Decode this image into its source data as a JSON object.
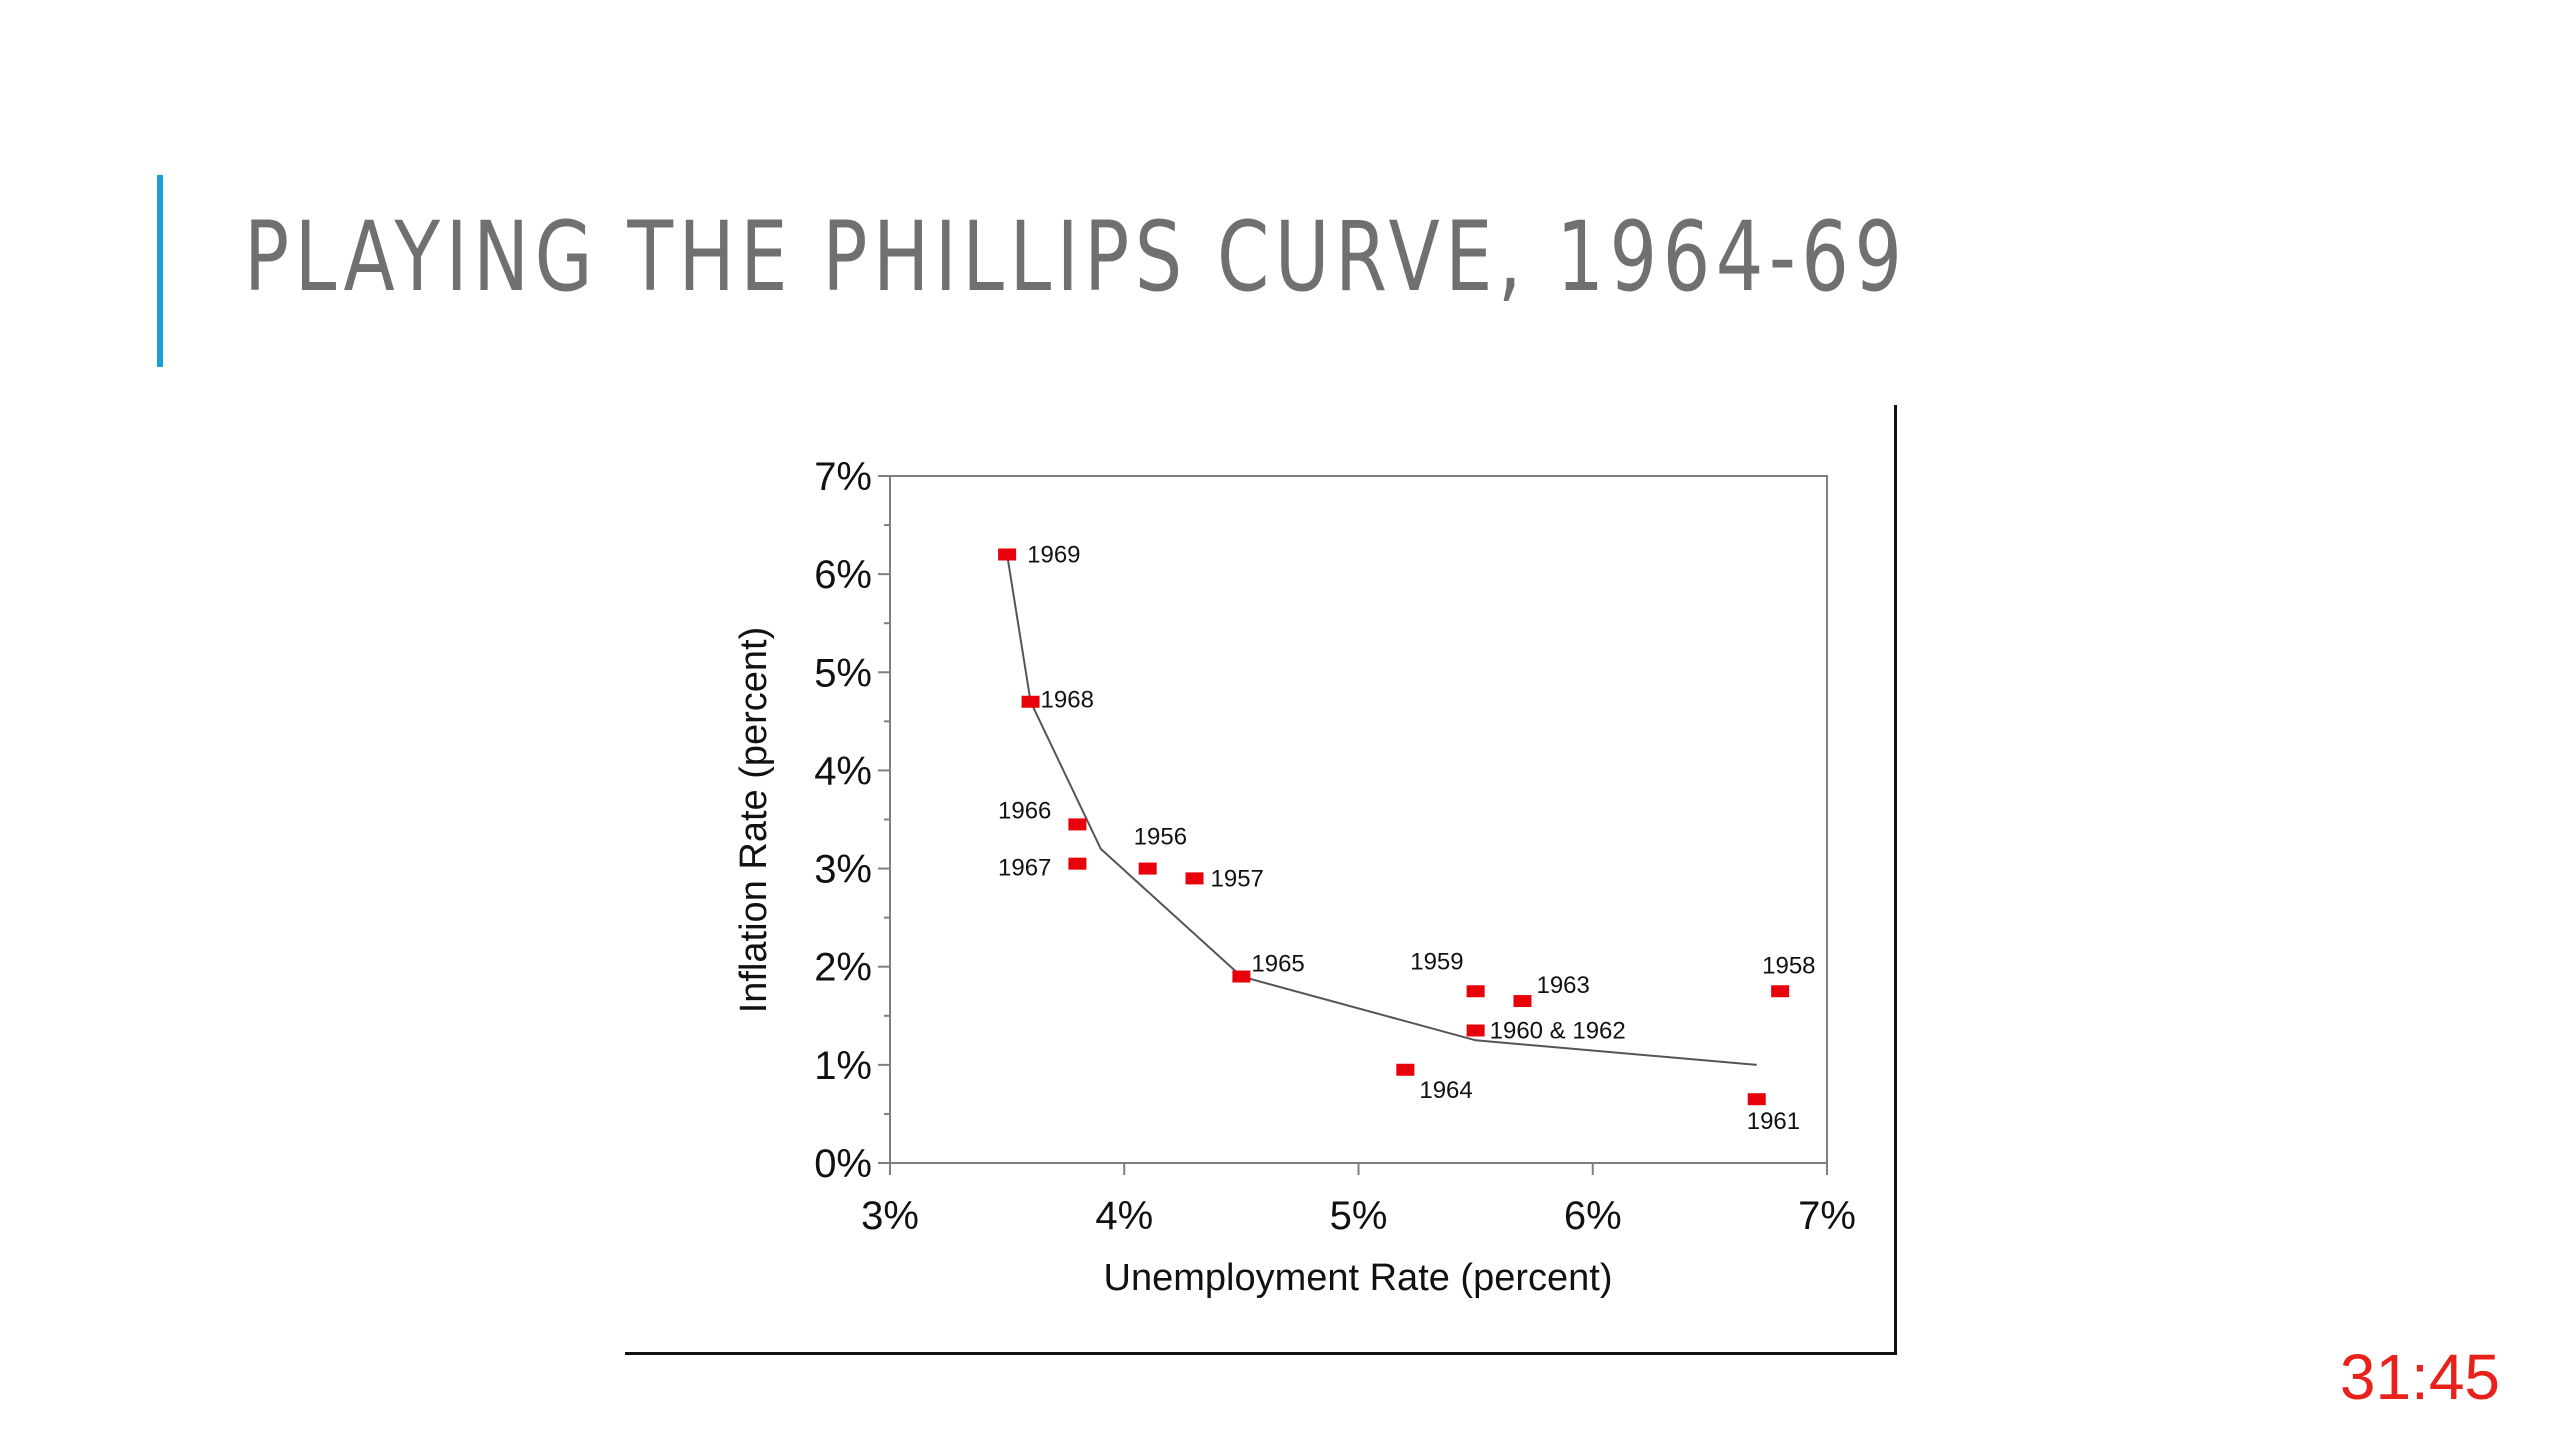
{
  "slide": {
    "title": "PLAYING THE PHILLIPS CURVE, 1964-69",
    "timer": "31:45",
    "accent_color": "#1a9fd4",
    "timer_color": "#e8211b"
  },
  "chart_data": {
    "type": "scatter",
    "title": "",
    "xlabel": "Unemployment Rate (percent)",
    "ylabel": "Inflation Rate (percent)",
    "xlim": [
      3,
      7
    ],
    "ylim": [
      0,
      7
    ],
    "x_ticks": [
      "3%",
      "4%",
      "5%",
      "6%",
      "7%"
    ],
    "y_ticks": [
      "0%",
      "1%",
      "2%",
      "3%",
      "4%",
      "5%",
      "6%",
      "7%"
    ],
    "grid": false,
    "marker_color": "#e8000b",
    "points": [
      {
        "label": "1969",
        "x": 3.5,
        "y": 6.2
      },
      {
        "label": "1968",
        "x": 3.6,
        "y": 4.7
      },
      {
        "label": "1966",
        "x": 3.8,
        "y": 3.45
      },
      {
        "label": "1967",
        "x": 3.8,
        "y": 3.05
      },
      {
        "label": "1956",
        "x": 4.1,
        "y": 3.0
      },
      {
        "label": "1957",
        "x": 4.3,
        "y": 2.9
      },
      {
        "label": "1965",
        "x": 4.5,
        "y": 1.9
      },
      {
        "label": "1959",
        "x": 5.5,
        "y": 1.75
      },
      {
        "label": "1963",
        "x": 5.7,
        "y": 1.65
      },
      {
        "label": "1960 & 1962",
        "x": 5.5,
        "y": 1.35
      },
      {
        "label": "1964",
        "x": 5.2,
        "y": 0.95
      },
      {
        "label": "1958",
        "x": 6.8,
        "y": 1.75
      },
      {
        "label": "1961",
        "x": 6.7,
        "y": 0.65
      }
    ],
    "curve": [
      {
        "x": 3.5,
        "y": 6.2
      },
      {
        "x": 3.6,
        "y": 4.7
      },
      {
        "x": 3.9,
        "y": 3.2
      },
      {
        "x": 4.5,
        "y": 1.9
      },
      {
        "x": 5.5,
        "y": 1.25
      },
      {
        "x": 6.7,
        "y": 1.0
      }
    ]
  }
}
